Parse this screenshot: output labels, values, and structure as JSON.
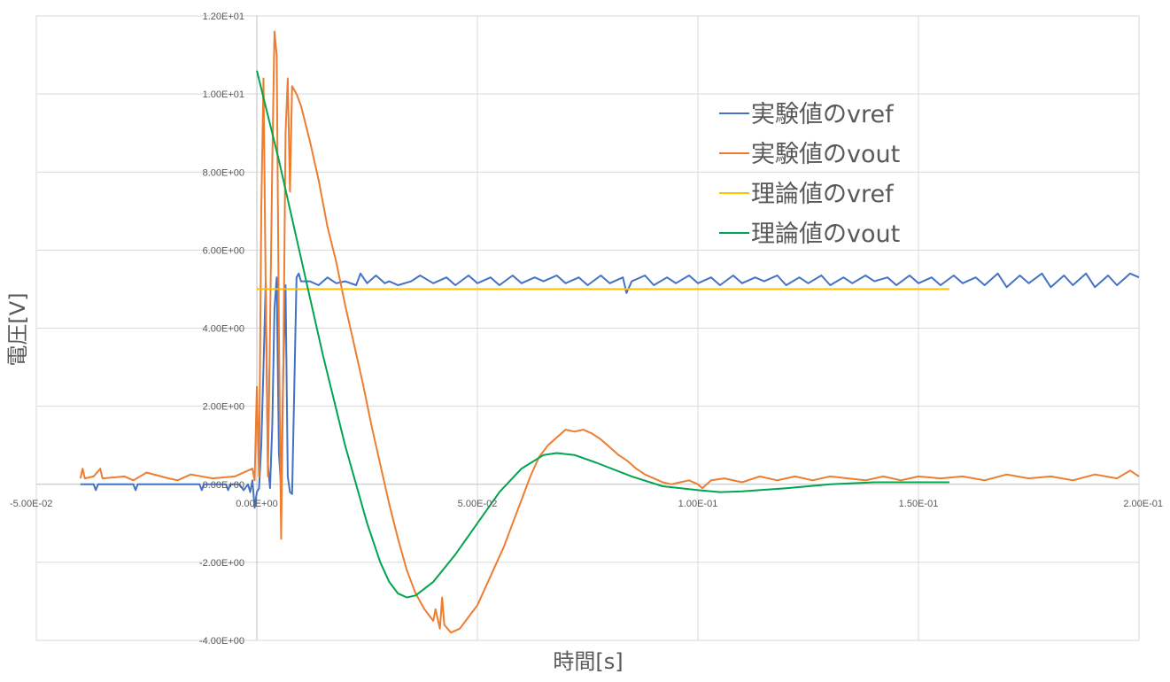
{
  "chart_data": {
    "type": "line",
    "title": "",
    "xlabel": "時間[s]",
    "ylabel": "電圧[V]",
    "xlim": [
      -0.05,
      0.2
    ],
    "ylim": [
      -4,
      12
    ],
    "x_ticks": [
      -0.05,
      0,
      0.05,
      0.1,
      0.15,
      0.2
    ],
    "x_tick_labels": [
      "-5.00E-02",
      "0.00E+00",
      "5.00E-02",
      "1.00E-01",
      "1.50E-01",
      "2.00E-01"
    ],
    "y_ticks": [
      -4,
      -2,
      0,
      2,
      4,
      6,
      8,
      10,
      12
    ],
    "y_tick_labels": [
      "-4.00E+00",
      "-2.00E+00",
      "0.00E+00",
      "2.00E+00",
      "4.00E+00",
      "6.00E+00",
      "8.00E+00",
      "1.00E+01",
      "1.20E+01"
    ],
    "grid": true,
    "legend_position": "top-right",
    "series": [
      {
        "name": "実験値のvref",
        "color": "#4472C4",
        "points": [
          [
            -0.04,
            0
          ],
          [
            -0.037,
            0
          ],
          [
            -0.0365,
            -0.15
          ],
          [
            -0.036,
            0
          ],
          [
            -0.028,
            0
          ],
          [
            -0.0275,
            -0.15
          ],
          [
            -0.027,
            0
          ],
          [
            -0.013,
            0
          ],
          [
            -0.0125,
            -0.15
          ],
          [
            -0.012,
            0
          ],
          [
            -0.007,
            0
          ],
          [
            -0.0065,
            -0.15
          ],
          [
            -0.006,
            0
          ],
          [
            -0.004,
            0
          ],
          [
            -0.003,
            -0.15
          ],
          [
            -0.002,
            0
          ],
          [
            -0.0015,
            -0.2
          ],
          [
            -0.001,
            0.1
          ],
          [
            -0.0005,
            -0.6
          ],
          [
            0,
            -0.2
          ],
          [
            0.0005,
            -0.1
          ],
          [
            0.001,
            1.0
          ],
          [
            0.0015,
            3.0
          ],
          [
            0.002,
            5.2
          ],
          [
            0.0025,
            0.5
          ],
          [
            0.003,
            -0.1
          ],
          [
            0.0035,
            1.5
          ],
          [
            0.004,
            4.5
          ],
          [
            0.0045,
            5.3
          ],
          [
            0.005,
            0.8
          ],
          [
            0.0055,
            -0.1
          ],
          [
            0.006,
            3.0
          ],
          [
            0.0065,
            5.1
          ],
          [
            0.007,
            0.2
          ],
          [
            0.0075,
            -0.2
          ],
          [
            0.008,
            -0.25
          ],
          [
            0.0085,
            2.5
          ],
          [
            0.009,
            5.3
          ],
          [
            0.0095,
            5.4
          ],
          [
            0.01,
            5.2
          ],
          [
            0.012,
            5.2
          ],
          [
            0.014,
            5.1
          ],
          [
            0.016,
            5.3
          ],
          [
            0.018,
            5.15
          ],
          [
            0.02,
            5.2
          ],
          [
            0.0225,
            5.1
          ],
          [
            0.0235,
            5.4
          ],
          [
            0.025,
            5.15
          ],
          [
            0.027,
            5.35
          ],
          [
            0.029,
            5.15
          ],
          [
            0.03,
            5.2
          ],
          [
            0.032,
            5.1
          ],
          [
            0.035,
            5.2
          ],
          [
            0.037,
            5.35
          ],
          [
            0.04,
            5.15
          ],
          [
            0.043,
            5.3
          ],
          [
            0.045,
            5.1
          ],
          [
            0.048,
            5.35
          ],
          [
            0.05,
            5.15
          ],
          [
            0.053,
            5.3
          ],
          [
            0.055,
            5.1
          ],
          [
            0.058,
            5.35
          ],
          [
            0.06,
            5.15
          ],
          [
            0.063,
            5.3
          ],
          [
            0.065,
            5.2
          ],
          [
            0.068,
            5.35
          ],
          [
            0.07,
            5.15
          ],
          [
            0.073,
            5.3
          ],
          [
            0.075,
            5.1
          ],
          [
            0.078,
            5.35
          ],
          [
            0.08,
            5.15
          ],
          [
            0.083,
            5.3
          ],
          [
            0.0838,
            4.9
          ],
          [
            0.085,
            5.2
          ],
          [
            0.088,
            5.35
          ],
          [
            0.09,
            5.1
          ],
          [
            0.093,
            5.3
          ],
          [
            0.095,
            5.15
          ],
          [
            0.098,
            5.35
          ],
          [
            0.1,
            5.15
          ],
          [
            0.103,
            5.3
          ],
          [
            0.105,
            5.1
          ],
          [
            0.108,
            5.35
          ],
          [
            0.11,
            5.15
          ],
          [
            0.113,
            5.3
          ],
          [
            0.115,
            5.2
          ],
          [
            0.118,
            5.35
          ],
          [
            0.12,
            5.1
          ],
          [
            0.123,
            5.3
          ],
          [
            0.125,
            5.15
          ],
          [
            0.128,
            5.35
          ],
          [
            0.13,
            5.1
          ],
          [
            0.133,
            5.3
          ],
          [
            0.135,
            5.15
          ],
          [
            0.138,
            5.35
          ],
          [
            0.14,
            5.2
          ],
          [
            0.143,
            5.3
          ],
          [
            0.145,
            5.1
          ],
          [
            0.148,
            5.35
          ],
          [
            0.15,
            5.15
          ],
          [
            0.153,
            5.3
          ],
          [
            0.155,
            5.1
          ],
          [
            0.158,
            5.35
          ],
          [
            0.16,
            5.15
          ],
          [
            0.163,
            5.3
          ],
          [
            0.165,
            5.1
          ],
          [
            0.168,
            5.4
          ],
          [
            0.17,
            5.05
          ],
          [
            0.173,
            5.35
          ],
          [
            0.175,
            5.15
          ],
          [
            0.178,
            5.4
          ],
          [
            0.18,
            5.05
          ],
          [
            0.183,
            5.35
          ],
          [
            0.185,
            5.1
          ],
          [
            0.188,
            5.4
          ],
          [
            0.19,
            5.05
          ],
          [
            0.193,
            5.35
          ],
          [
            0.195,
            5.1
          ],
          [
            0.198,
            5.4
          ],
          [
            0.2,
            5.3
          ]
        ]
      },
      {
        "name": "実験値のvout",
        "color": "#ED7D31",
        "points": [
          [
            -0.04,
            0.15
          ],
          [
            -0.0395,
            0.4
          ],
          [
            -0.039,
            0.15
          ],
          [
            -0.037,
            0.2
          ],
          [
            -0.0355,
            0.4
          ],
          [
            -0.035,
            0.15
          ],
          [
            -0.03,
            0.2
          ],
          [
            -0.028,
            0.1
          ],
          [
            -0.025,
            0.3
          ],
          [
            -0.02,
            0.15
          ],
          [
            -0.018,
            0.1
          ],
          [
            -0.015,
            0.25
          ],
          [
            -0.01,
            0.15
          ],
          [
            -0.01,
            0.15
          ],
          [
            -0.005,
            0.2
          ],
          [
            -0.001,
            0.4
          ],
          [
            -0.0005,
            0.1
          ],
          [
            0,
            2.5
          ],
          [
            0.0005,
            0.2
          ],
          [
            0.001,
            7.0
          ],
          [
            0.0015,
            10.4
          ],
          [
            0.002,
            5.0
          ],
          [
            0.0025,
            0.2
          ],
          [
            0.003,
            4.0
          ],
          [
            0.0035,
            8.2
          ],
          [
            0.004,
            11.6
          ],
          [
            0.0045,
            11.0
          ],
          [
            0.005,
            4.0
          ],
          [
            0.0055,
            -1.4
          ],
          [
            0.006,
            3.0
          ],
          [
            0.0065,
            9.0
          ],
          [
            0.007,
            10.4
          ],
          [
            0.0075,
            7.5
          ],
          [
            0.008,
            10.2
          ],
          [
            0.009,
            10.0
          ],
          [
            0.01,
            9.7
          ],
          [
            0.012,
            8.8
          ],
          [
            0.014,
            7.8
          ],
          [
            0.016,
            6.6
          ],
          [
            0.018,
            5.7
          ],
          [
            0.02,
            4.6
          ],
          [
            0.022,
            3.6
          ],
          [
            0.024,
            2.6
          ],
          [
            0.026,
            1.5
          ],
          [
            0.028,
            0.5
          ],
          [
            0.03,
            -0.5
          ],
          [
            0.032,
            -1.4
          ],
          [
            0.034,
            -2.2
          ],
          [
            0.036,
            -2.8
          ],
          [
            0.038,
            -3.2
          ],
          [
            0.04,
            -3.5
          ],
          [
            0.0405,
            -3.2
          ],
          [
            0.0415,
            -3.7
          ],
          [
            0.042,
            -2.9
          ],
          [
            0.0425,
            -3.6
          ],
          [
            0.044,
            -3.8
          ],
          [
            0.046,
            -3.7
          ],
          [
            0.048,
            -3.4
          ],
          [
            0.05,
            -3.1
          ],
          [
            0.052,
            -2.6
          ],
          [
            0.054,
            -2.1
          ],
          [
            0.056,
            -1.6
          ],
          [
            0.058,
            -1.0
          ],
          [
            0.06,
            -0.4
          ],
          [
            0.062,
            0.2
          ],
          [
            0.064,
            0.7
          ],
          [
            0.066,
            1.0
          ],
          [
            0.068,
            1.2
          ],
          [
            0.07,
            1.4
          ],
          [
            0.072,
            1.35
          ],
          [
            0.074,
            1.4
          ],
          [
            0.076,
            1.3
          ],
          [
            0.078,
            1.15
          ],
          [
            0.08,
            0.95
          ],
          [
            0.082,
            0.75
          ],
          [
            0.084,
            0.6
          ],
          [
            0.086,
            0.4
          ],
          [
            0.088,
            0.25
          ],
          [
            0.09,
            0.15
          ],
          [
            0.092,
            0.05
          ],
          [
            0.094,
            0.0
          ],
          [
            0.096,
            0.05
          ],
          [
            0.098,
            0.1
          ],
          [
            0.1,
            0.0
          ],
          [
            0.101,
            -0.1
          ],
          [
            0.103,
            0.1
          ],
          [
            0.106,
            0.15
          ],
          [
            0.11,
            0.05
          ],
          [
            0.114,
            0.2
          ],
          [
            0.118,
            0.1
          ],
          [
            0.122,
            0.2
          ],
          [
            0.126,
            0.1
          ],
          [
            0.13,
            0.2
          ],
          [
            0.134,
            0.15
          ],
          [
            0.138,
            0.1
          ],
          [
            0.142,
            0.2
          ],
          [
            0.146,
            0.1
          ],
          [
            0.15,
            0.2
          ],
          [
            0.155,
            0.15
          ],
          [
            0.16,
            0.2
          ],
          [
            0.165,
            0.1
          ],
          [
            0.17,
            0.25
          ],
          [
            0.175,
            0.15
          ],
          [
            0.18,
            0.2
          ],
          [
            0.185,
            0.1
          ],
          [
            0.19,
            0.25
          ],
          [
            0.195,
            0.15
          ],
          [
            0.198,
            0.35
          ],
          [
            0.2,
            0.2
          ]
        ]
      },
      {
        "name": "理論値のvref",
        "color": "#FFC000",
        "points": [
          [
            0,
            5.0
          ],
          [
            0.157,
            5.0
          ]
        ]
      },
      {
        "name": "理論値のvout",
        "color": "#00A550",
        "points": [
          [
            0,
            10.6
          ],
          [
            0.005,
            8.3
          ],
          [
            0.01,
            5.8
          ],
          [
            0.015,
            3.3
          ],
          [
            0.02,
            1.0
          ],
          [
            0.025,
            -1.0
          ],
          [
            0.028,
            -2.0
          ],
          [
            0.03,
            -2.5
          ],
          [
            0.032,
            -2.8
          ],
          [
            0.034,
            -2.9
          ],
          [
            0.036,
            -2.85
          ],
          [
            0.04,
            -2.5
          ],
          [
            0.045,
            -1.8
          ],
          [
            0.05,
            -1.0
          ],
          [
            0.055,
            -0.2
          ],
          [
            0.06,
            0.4
          ],
          [
            0.065,
            0.75
          ],
          [
            0.068,
            0.8
          ],
          [
            0.072,
            0.75
          ],
          [
            0.077,
            0.55
          ],
          [
            0.085,
            0.2
          ],
          [
            0.092,
            -0.05
          ],
          [
            0.1,
            -0.15
          ],
          [
            0.105,
            -0.2
          ],
          [
            0.11,
            -0.18
          ],
          [
            0.12,
            -0.1
          ],
          [
            0.13,
            0.0
          ],
          [
            0.14,
            0.05
          ],
          [
            0.15,
            0.05
          ],
          [
            0.157,
            0.05
          ]
        ]
      }
    ]
  }
}
